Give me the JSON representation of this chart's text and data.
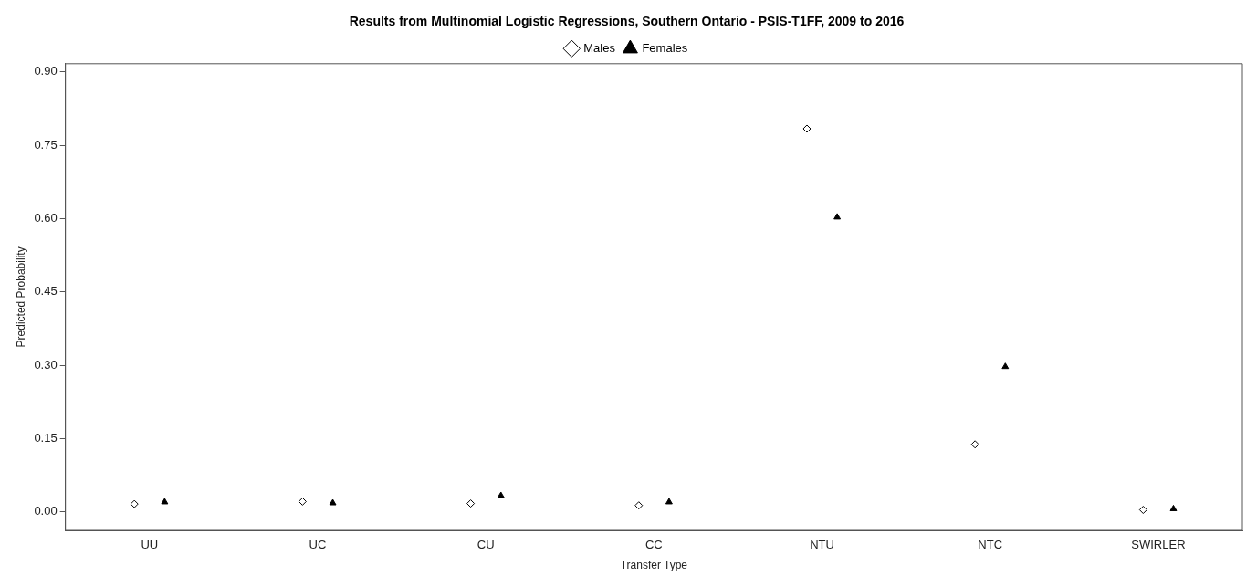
{
  "chart_data": {
    "type": "scatter",
    "title": "Results from Multinomial Logistic Regressions, Southern Ontario - PSIS-T1FF, 2009 to 2016",
    "xlabel": "Transfer Type",
    "ylabel": "Predicted Probability",
    "categories": [
      "UU",
      "UC",
      "CU",
      "CC",
      "NTU",
      "NTC",
      "SWIRLER"
    ],
    "series": [
      {
        "name": "Males",
        "color": "#000000",
        "marker": "diamond",
        "values": [
          0.016,
          0.021,
          0.017,
          0.013,
          0.784,
          0.138,
          0.004
        ]
      },
      {
        "name": "Females",
        "color": "#000000",
        "marker": "triangle",
        "values": [
          0.02,
          0.018,
          0.033,
          0.02,
          0.603,
          0.297,
          0.006
        ]
      }
    ],
    "ylim": [
      -0.038,
      0.917
    ],
    "yticks": [
      {
        "value": 0,
        "label": "0.00"
      },
      0.15,
      {
        "value": 0.3,
        "label": "0.30"
      },
      0.45,
      {
        "value": 0.6,
        "label": "0.60"
      },
      0.75,
      {
        "value": 0.9,
        "label": "0.90"
      }
    ],
    "grid": false,
    "legend": "top"
  }
}
